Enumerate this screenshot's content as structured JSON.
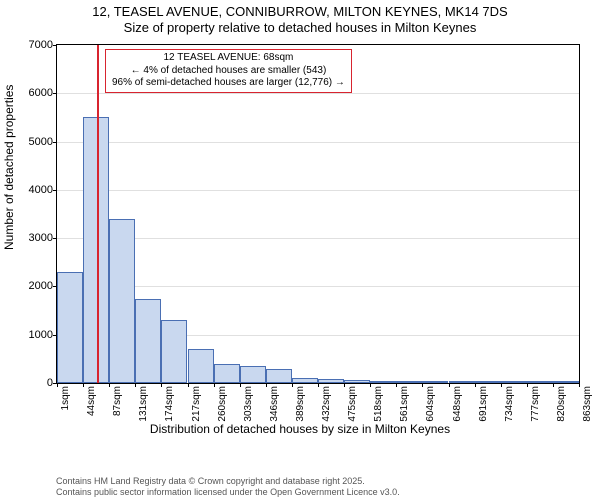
{
  "title": {
    "line1": "12, TEASEL AVENUE, CONNIBURROW, MILTON KEYNES, MK14 7DS",
    "line2": "Size of property relative to detached houses in Milton Keynes"
  },
  "chart": {
    "type": "histogram",
    "ylabel": "Number of detached properties",
    "xlabel": "Distribution of detached houses by size in Milton Keynes",
    "ylim": [
      0,
      7000
    ],
    "ytick_step": 1000,
    "plot_border_color": "#000000",
    "grid_color": "#e0e0e0",
    "background_color": "#ffffff",
    "label_fontsize": 12,
    "tick_fontsize": 11,
    "xtick_labels": [
      "1sqm",
      "44sqm",
      "87sqm",
      "131sqm",
      "174sqm",
      "217sqm",
      "260sqm",
      "303sqm",
      "346sqm",
      "389sqm",
      "432sqm",
      "475sqm",
      "518sqm",
      "561sqm",
      "604sqm",
      "648sqm",
      "691sqm",
      "734sqm",
      "777sqm",
      "820sqm",
      "863sqm"
    ],
    "bars": {
      "values": [
        2300,
        5500,
        3400,
        1750,
        1300,
        700,
        400,
        350,
        280,
        110,
        90,
        60,
        40,
        30,
        22,
        15,
        10,
        10,
        5,
        5
      ],
      "fill_color": "#c9d8ef",
      "border_color": "#4a6fb3",
      "border_width": 1
    },
    "marker": {
      "value_sqm": 68,
      "line_color": "#d8242f",
      "line_width": 2
    },
    "callout": {
      "line1": "12 TEASEL AVENUE: 68sqm",
      "line2": "← 4% of detached houses are smaller (543)",
      "line3": "96% of semi-detached houses are larger (12,776) →",
      "border_color": "#d8242f",
      "background_color": "#ffffff",
      "fontsize": 10
    }
  },
  "footer": {
    "line1": "Contains HM Land Registry data © Crown copyright and database right 2025.",
    "line2": "Contains public sector information licensed under the Open Government Licence v3.0.",
    "color": "#555555",
    "fontsize": 9
  }
}
